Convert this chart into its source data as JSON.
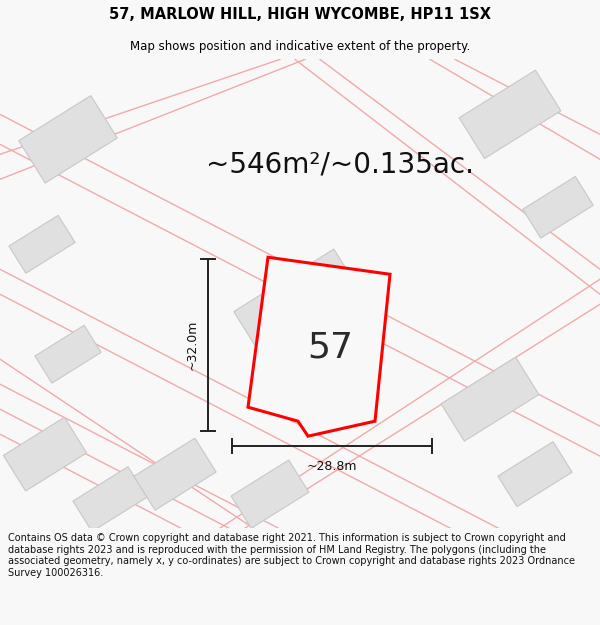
{
  "title": "57, MARLOW HILL, HIGH WYCOMBE, HP11 1SX",
  "subtitle": "Map shows position and indicative extent of the property.",
  "area_label": "~546m²/~0.135ac.",
  "property_number": "57",
  "dim_width": "~28.8m",
  "dim_height": "~32.0m",
  "footer": "Contains OS data © Crown copyright and database right 2021. This information is subject to Crown copyright and database rights 2023 and is reproduced with the permission of HM Land Registry. The polygons (including the associated geometry, namely x, y co-ordinates) are subject to Crown copyright and database rights 2023 Ordnance Survey 100026316.",
  "bg_color": "#f8f8f8",
  "map_bg": "#ffffff",
  "road_color": "#f0aaaa",
  "building_color": "#e0e0e0",
  "building_edge": "#c8c8c8",
  "property_fill": "#f8f8f8",
  "property_edge": "#ff0000",
  "dim_line_color": "#222222",
  "title_fontsize": 10.5,
  "subtitle_fontsize": 8.5,
  "area_fontsize": 20,
  "number_fontsize": 26,
  "dim_fontsize": 9,
  "footer_fontsize": 7.0
}
